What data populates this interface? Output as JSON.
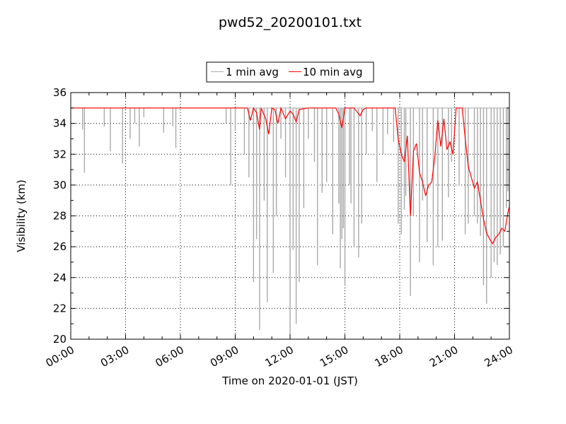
{
  "chart_data": {
    "type": "line",
    "title": "pwd52_20200101.txt",
    "xlabel": "Time on 2020-01-01 (JST)",
    "ylabel": "Visibility (km)",
    "xlim": [
      "00:00",
      "24:00"
    ],
    "ylim": [
      20,
      36
    ],
    "x_ticks": [
      "00:00",
      "03:00",
      "06:00",
      "09:00",
      "12:00",
      "15:00",
      "18:00",
      "21:00",
      "24:00"
    ],
    "y_ticks": [
      "20",
      "22",
      "24",
      "26",
      "28",
      "30",
      "32",
      "34",
      "36"
    ],
    "grid": true,
    "legend_position": "top-center",
    "colors": {
      "one_min": "#a9a9a9",
      "ten_min": "#ff0000"
    },
    "series": [
      {
        "name": "1 min avg",
        "baseline": 35.0,
        "dips": [
          [
            "00:39",
            33.6
          ],
          [
            "00:45",
            30.8
          ],
          [
            "01:50",
            33.8
          ],
          [
            "02:10",
            32.2
          ],
          [
            "02:50",
            31.4
          ],
          [
            "03:15",
            33.0
          ],
          [
            "03:30",
            34.0
          ],
          [
            "03:45",
            32.5
          ],
          [
            "04:00",
            34.4
          ],
          [
            "05:05",
            33.4
          ],
          [
            "05:35",
            33.8
          ],
          [
            "05:45",
            32.4
          ],
          [
            "08:30",
            34.0
          ],
          [
            "08:45",
            30.0
          ],
          [
            "09:00",
            33.5
          ],
          [
            "09:30",
            32.0
          ],
          [
            "09:45",
            30.5
          ],
          [
            "10:00",
            23.7
          ],
          [
            "10:10",
            26.5
          ],
          [
            "10:20",
            20.6
          ],
          [
            "10:35",
            29.0
          ],
          [
            "10:45",
            22.4
          ],
          [
            "11:05",
            24.3
          ],
          [
            "11:15",
            28.0
          ],
          [
            "11:30",
            33.0
          ],
          [
            "11:45",
            30.5
          ],
          [
            "12:00",
            20.3
          ],
          [
            "12:10",
            25.8
          ],
          [
            "12:20",
            21.0
          ],
          [
            "12:30",
            23.7
          ],
          [
            "12:45",
            28.5
          ],
          [
            "13:00",
            33.0
          ],
          [
            "13:20",
            31.5
          ],
          [
            "13:30",
            24.8
          ],
          [
            "13:45",
            29.5
          ],
          [
            "14:00",
            30.2
          ],
          [
            "14:20",
            26.8
          ],
          [
            "14:40",
            28.8
          ],
          [
            "14:45",
            24.6
          ],
          [
            "14:50",
            26.5
          ],
          [
            "14:55",
            27.2
          ],
          [
            "15:00",
            23.5
          ],
          [
            "15:15",
            30.0
          ],
          [
            "15:20",
            28.8
          ],
          [
            "15:30",
            26.0
          ],
          [
            "15:45",
            25.3
          ],
          [
            "15:55",
            27.5
          ],
          [
            "16:10",
            32.0
          ],
          [
            "16:30",
            33.5
          ],
          [
            "16:45",
            30.2
          ],
          [
            "17:05",
            32.0
          ],
          [
            "17:20",
            33.3
          ],
          [
            "17:40",
            32.8
          ],
          [
            "17:55",
            27.5
          ],
          [
            "18:05",
            26.8
          ],
          [
            "18:15",
            28.4
          ],
          [
            "18:20",
            29.3
          ],
          [
            "18:35",
            22.8
          ],
          [
            "18:45",
            28.0
          ],
          [
            "19:05",
            25.0
          ],
          [
            "19:15",
            29.0
          ],
          [
            "19:30",
            26.3
          ],
          [
            "19:50",
            24.8
          ],
          [
            "20:05",
            26.0
          ],
          [
            "20:20",
            26.4
          ],
          [
            "20:40",
            29.2
          ],
          [
            "20:50",
            31.5
          ],
          [
            "21:15",
            30.0
          ],
          [
            "21:35",
            26.8
          ],
          [
            "21:45",
            27.5
          ],
          [
            "22:05",
            28.0
          ],
          [
            "22:15",
            27.5
          ],
          [
            "22:25",
            26.7
          ],
          [
            "22:35",
            23.5
          ],
          [
            "22:45",
            22.3
          ],
          [
            "23:00",
            24.0
          ],
          [
            "23:10",
            25.0
          ],
          [
            "23:20",
            24.8
          ],
          [
            "23:30",
            25.5
          ],
          [
            "23:40",
            26.0
          ],
          [
            "23:50",
            28.5
          ],
          [
            "23:55",
            29.6
          ]
        ]
      },
      {
        "name": "10 min avg",
        "x": [
          "00:00",
          "09:40",
          "09:50",
          "10:00",
          "10:10",
          "10:20",
          "10:25",
          "10:40",
          "10:50",
          "11:00",
          "11:10",
          "11:20",
          "11:30",
          "11:45",
          "12:00",
          "12:10",
          "12:20",
          "12:30",
          "13:00",
          "14:00",
          "14:30",
          "14:40",
          "14:50",
          "15:00",
          "15:10",
          "15:30",
          "15:50",
          "16:00",
          "16:10",
          "17:00",
          "17:45",
          "17:55",
          "18:05",
          "18:15",
          "18:25",
          "18:35",
          "18:45",
          "18:55",
          "19:05",
          "19:15",
          "19:25",
          "19:35",
          "19:45",
          "19:55",
          "20:05",
          "20:15",
          "20:25",
          "20:35",
          "20:45",
          "20:55",
          "21:05",
          "21:15",
          "21:25",
          "21:35",
          "21:45",
          "21:55",
          "22:05",
          "22:15",
          "22:25",
          "22:35",
          "22:45",
          "22:55",
          "23:05",
          "23:15",
          "23:25",
          "23:35",
          "23:45",
          "23:55",
          "24:00"
        ],
        "y": [
          35.0,
          35.0,
          34.2,
          35.0,
          34.7,
          33.6,
          35.0,
          34.3,
          33.3,
          35.0,
          34.9,
          34.0,
          35.0,
          34.3,
          34.8,
          34.6,
          34.1,
          34.9,
          35.0,
          35.0,
          35.0,
          34.6,
          33.7,
          35.0,
          35.0,
          35.0,
          34.5,
          34.9,
          35.0,
          35.0,
          35.0,
          33.0,
          32.0,
          31.5,
          33.2,
          28.0,
          32.2,
          32.7,
          30.8,
          30.2,
          29.3,
          30.0,
          30.2,
          31.8,
          34.2,
          32.5,
          34.3,
          32.3,
          32.8,
          32.0,
          35.0,
          35.0,
          35.0,
          33.0,
          31.2,
          30.5,
          29.8,
          30.2,
          29.0,
          27.8,
          26.9,
          26.5,
          26.2,
          26.6,
          26.8,
          27.2,
          27.0,
          28.2,
          28.6
        ]
      }
    ]
  }
}
